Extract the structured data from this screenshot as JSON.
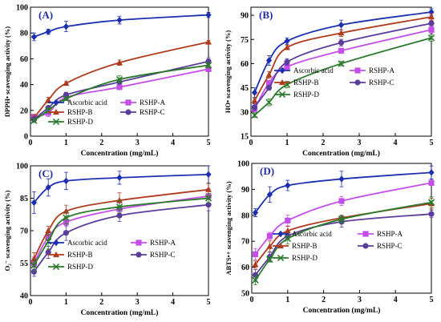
{
  "colors": {
    "Ascorbic acid": "#1c2fb0",
    "RSHP-A": "#c44fe8",
    "RSHP-B": "#b03a1e",
    "RSHP-C": "#5b3d9c",
    "RSHP-D": "#2a7a2a"
  },
  "chart_data": [
    {
      "type": "line",
      "panel_label": "(A)",
      "xlabel": "Concentration (mg/mL)",
      "ylabel": "DPPH• scavenging activity (%)",
      "xlim": [
        0,
        5
      ],
      "ylim": [
        0,
        100
      ],
      "xticks": [
        0,
        1,
        2,
        3,
        4,
        5
      ],
      "yticks": [
        0,
        20,
        40,
        60,
        80,
        100
      ],
      "x": [
        0.1,
        0.5,
        1,
        2.5,
        5
      ],
      "legend_position": "bottom-center",
      "series": [
        {
          "name": "Ascorbic acid",
          "marker": "diamond",
          "values": [
            77,
            81,
            85,
            90,
            94
          ]
        },
        {
          "name": "RSHP-A",
          "marker": "square",
          "values": [
            15,
            18,
            30,
            38,
            52
          ]
        },
        {
          "name": "RSHP-B",
          "marker": "triangle",
          "values": [
            14,
            28,
            41,
            57,
            73
          ]
        },
        {
          "name": "RSHP-C",
          "marker": "circle",
          "values": [
            13,
            22,
            32,
            42,
            58
          ]
        },
        {
          "name": "RSHP-D",
          "marker": "x",
          "values": [
            12,
            20,
            29,
            44,
            55
          ]
        }
      ]
    },
    {
      "type": "line",
      "panel_label": "(B)",
      "xlabel": "Concentration (mg/mL)",
      "ylabel": "HO• scavenging activity (%)",
      "xlim": [
        0,
        5
      ],
      "ylim": [
        15,
        95
      ],
      "xticks": [
        0,
        1,
        2,
        3,
        4,
        5
      ],
      "yticks": [
        15,
        30,
        45,
        60,
        75,
        90
      ],
      "x": [
        0.1,
        0.5,
        1,
        2.5,
        5
      ],
      "legend_position": "bottom-center",
      "series": [
        {
          "name": "Ascorbic acid",
          "marker": "diamond",
          "values": [
            42,
            62,
            74,
            84,
            92
          ]
        },
        {
          "name": "RSHP-A",
          "marker": "square",
          "values": [
            32,
            48,
            58,
            68,
            81
          ]
        },
        {
          "name": "RSHP-B",
          "marker": "triangle",
          "values": [
            37,
            53,
            70,
            79,
            89
          ]
        },
        {
          "name": "RSHP-C",
          "marker": "circle",
          "values": [
            33,
            45,
            61,
            73,
            85
          ]
        },
        {
          "name": "RSHP-D",
          "marker": "x",
          "values": [
            28,
            36,
            47,
            60,
            76
          ]
        }
      ]
    },
    {
      "type": "line",
      "panel_label": "(C)",
      "xlabel": "Concentration (mg/mL)",
      "ylabel": "O₂⁻ scavenging activity (%)",
      "xlim": [
        0,
        5
      ],
      "ylim": [
        40,
        100
      ],
      "xticks": [
        0,
        1,
        2,
        3,
        4,
        5
      ],
      "yticks": [
        40,
        55,
        70,
        85,
        100
      ],
      "x": [
        0.1,
        0.5,
        1,
        2.5,
        5
      ],
      "legend_position": "bottom-center",
      "series": [
        {
          "name": "Ascorbic acid",
          "marker": "diamond",
          "values": [
            83,
            90,
            93,
            94.5,
            96
          ]
        },
        {
          "name": "RSHP-A",
          "marker": "square",
          "values": [
            55,
            67,
            74,
            80,
            86
          ]
        },
        {
          "name": "RSHP-B",
          "marker": "triangle",
          "values": [
            57,
            70,
            79,
            84,
            89
          ]
        },
        {
          "name": "RSHP-C",
          "marker": "circle",
          "values": [
            51,
            60,
            69,
            77,
            82
          ]
        },
        {
          "name": "RSHP-D",
          "marker": "x",
          "values": [
            54,
            65,
            76,
            81,
            85
          ]
        }
      ]
    },
    {
      "type": "line",
      "panel_label": "(D)",
      "xlabel": "Concentration (mg/mL)",
      "ylabel": "ABTS•+ scavenging activity (%)",
      "xlim": [
        0,
        5
      ],
      "ylim": [
        50,
        100
      ],
      "xticks": [
        0,
        1,
        2,
        3,
        4,
        5
      ],
      "yticks": [
        50,
        60,
        70,
        80,
        90,
        100
      ],
      "x": [
        0.1,
        0.5,
        1,
        2.5,
        5
      ],
      "legend_position": "bottom-center",
      "series": [
        {
          "name": "Ascorbic acid",
          "marker": "diamond",
          "values": [
            81,
            88,
            91.5,
            94,
            96.5
          ]
        },
        {
          "name": "RSHP-A",
          "marker": "square",
          "values": [
            65,
            72,
            78,
            85.5,
            92.5
          ]
        },
        {
          "name": "RSHP-B",
          "marker": "triangle",
          "values": [
            61,
            68,
            74,
            79,
            84.5
          ]
        },
        {
          "name": "RSHP-C",
          "marker": "circle",
          "values": [
            57,
            64,
            72,
            77.5,
            80.5
          ]
        },
        {
          "name": "RSHP-D",
          "marker": "x",
          "values": [
            55,
            63,
            71,
            78.5,
            85
          ]
        }
      ]
    }
  ]
}
